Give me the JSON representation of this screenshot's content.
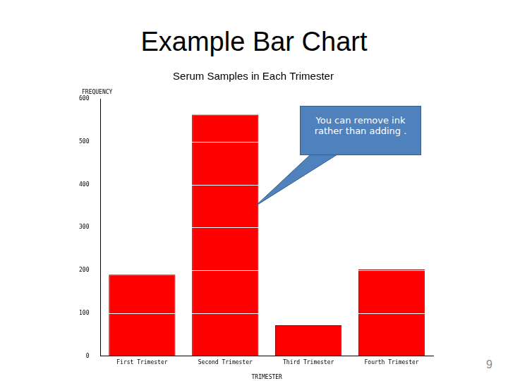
{
  "slide_title": "Example Bar Chart",
  "page_number": 9,
  "chart_data": {
    "type": "bar",
    "title": "Serum Samples in Each Trimester",
    "y_label": "FREQUENCY",
    "x_label": "TRIMESTER",
    "categories": [
      "First Trimester",
      "Second Trimester",
      "Third Trimester",
      "Fourth Trimester"
    ],
    "values": [
      190,
      563,
      72,
      202
    ],
    "color": "#ff0000",
    "ylim": [
      0,
      600
    ],
    "yticks": [
      0,
      100,
      200,
      300,
      400,
      500,
      600
    ],
    "grid": true,
    "annotation": "You can remove ink rather than adding ."
  }
}
